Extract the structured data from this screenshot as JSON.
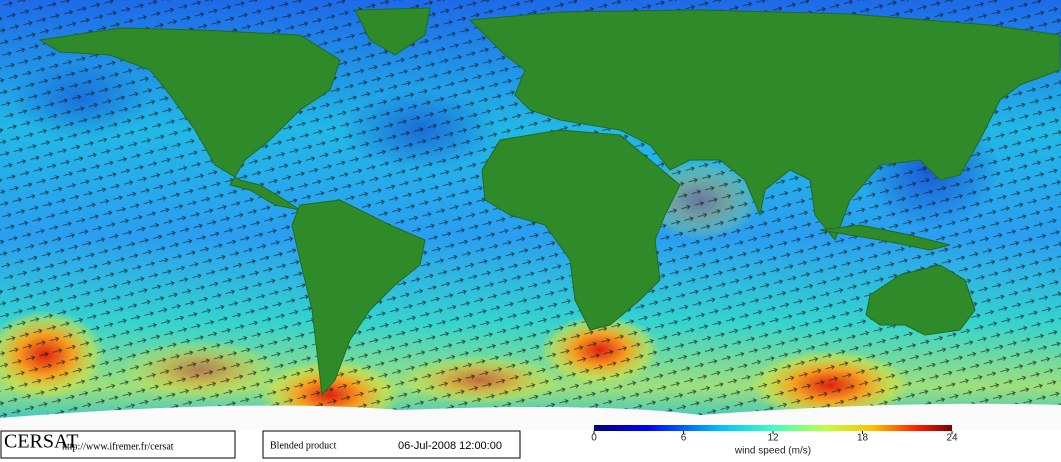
{
  "footer": {
    "logo": "CERSAT",
    "url": "http://www.ifremer.fr/cersat",
    "product": "Blended product",
    "date": "06-Jul-2008 12:00:00"
  },
  "colorbar": {
    "lim": [
      0,
      24
    ],
    "ticks": [
      0,
      6,
      12,
      18,
      24
    ],
    "label": "wind speed (m/s)"
  }
}
